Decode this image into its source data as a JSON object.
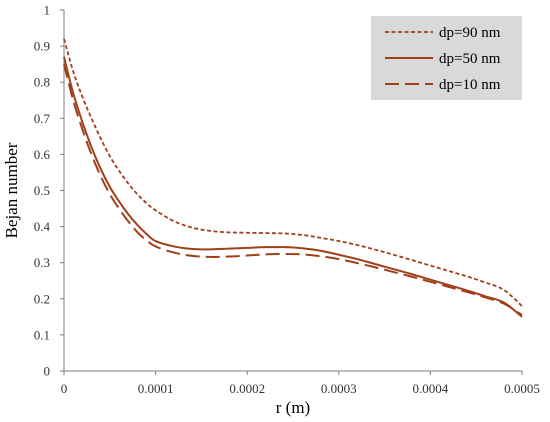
{
  "chart_data": {
    "type": "line",
    "title": "",
    "xlabel": "r (m)",
    "ylabel": "Bejan number",
    "xlim": [
      0,
      0.0005
    ],
    "ylim": [
      0,
      1
    ],
    "x_ticks": [
      "0",
      "0.0001",
      "0.0002",
      "0.0003",
      "0.0004",
      "0.0005"
    ],
    "y_ticks": [
      "0",
      "0.1",
      "0.2",
      "0.3",
      "0.4",
      "0.5",
      "0.6",
      "0.7",
      "0.8",
      "0.9",
      "1"
    ],
    "grid": false,
    "legend_position": "top-right",
    "line_color": "#a0401a",
    "series": [
      {
        "name": "dp=90 nm",
        "dash": "dotted",
        "x": [
          0,
          1e-05,
          2e-05,
          3e-05,
          4e-05,
          5e-05,
          6e-05,
          7e-05,
          8e-05,
          9e-05,
          0.0001,
          0.00012,
          0.00014,
          0.00016,
          0.00018,
          0.0002,
          0.00022,
          0.00024,
          0.00026,
          0.00028,
          0.0003,
          0.00032,
          0.00034,
          0.00036,
          0.00038,
          0.0004,
          0.00042,
          0.00044,
          0.00046,
          0.00048,
          0.0005
        ],
        "y": [
          0.92,
          0.83,
          0.76,
          0.7,
          0.645,
          0.595,
          0.555,
          0.52,
          0.49,
          0.465,
          0.445,
          0.415,
          0.397,
          0.388,
          0.384,
          0.383,
          0.382,
          0.381,
          0.377,
          0.369,
          0.36,
          0.349,
          0.336,
          0.322,
          0.307,
          0.292,
          0.277,
          0.262,
          0.245,
          0.225,
          0.18
        ]
      },
      {
        "name": "dp=50 nm",
        "dash": "solid",
        "x": [
          0,
          1e-05,
          2e-05,
          3e-05,
          4e-05,
          5e-05,
          6e-05,
          7e-05,
          8e-05,
          9e-05,
          0.0001,
          0.00012,
          0.00014,
          0.00016,
          0.00018,
          0.0002,
          0.00022,
          0.00024,
          0.00026,
          0.00028,
          0.0003,
          0.00032,
          0.00034,
          0.00036,
          0.00038,
          0.0004,
          0.00042,
          0.00044,
          0.00046,
          0.00048,
          0.0005
        ],
        "y": [
          0.87,
          0.77,
          0.69,
          0.62,
          0.56,
          0.51,
          0.47,
          0.435,
          0.405,
          0.38,
          0.36,
          0.345,
          0.338,
          0.337,
          0.339,
          0.341,
          0.343,
          0.343,
          0.34,
          0.333,
          0.322,
          0.31,
          0.296,
          0.282,
          0.268,
          0.253,
          0.238,
          0.223,
          0.207,
          0.19,
          0.15
        ]
      },
      {
        "name": "dp=10 nm",
        "dash": "dashed",
        "x": [
          0,
          1e-05,
          2e-05,
          3e-05,
          4e-05,
          5e-05,
          6e-05,
          7e-05,
          8e-05,
          9e-05,
          0.0001,
          0.00012,
          0.00014,
          0.00016,
          0.00018,
          0.0002,
          0.00022,
          0.00024,
          0.00026,
          0.00028,
          0.0003,
          0.00032,
          0.00034,
          0.00036,
          0.00038,
          0.0004,
          0.00042,
          0.00044,
          0.00046,
          0.00048,
          0.0005
        ],
        "y": [
          0.85,
          0.75,
          0.67,
          0.6,
          0.54,
          0.49,
          0.45,
          0.415,
          0.385,
          0.362,
          0.345,
          0.328,
          0.319,
          0.316,
          0.317,
          0.32,
          0.323,
          0.324,
          0.323,
          0.318,
          0.31,
          0.299,
          0.287,
          0.274,
          0.261,
          0.247,
          0.233,
          0.219,
          0.204,
          0.187,
          0.155
        ]
      }
    ]
  }
}
